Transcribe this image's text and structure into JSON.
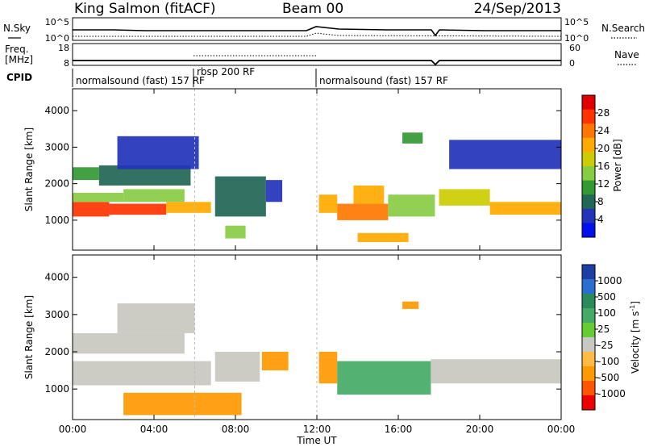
{
  "header": {
    "station": "King Salmon (fitACF)",
    "beam": "Beam 00",
    "date": "24/Sep/2013"
  },
  "noise_panel": {
    "left_label": "N.Sky",
    "right_label": "N.Search",
    "left_ticks": [
      "10^5",
      "10^0"
    ],
    "right_ticks": [
      "10^5",
      "10^0"
    ]
  },
  "freq_panel": {
    "left_label_1": "Freq.",
    "left_label_2": "[MHz]",
    "right_label": "Nave",
    "left_ticks": [
      "18",
      "8"
    ],
    "right_ticks": [
      "60",
      "0"
    ]
  },
  "cpid_panel": {
    "label": "CPID",
    "segments": [
      {
        "name": "normalsound (fast) 157 RF",
        "start": 0.0,
        "end": 6.0
      },
      {
        "name": "rbsp 200 RF",
        "start": 6.0,
        "end": 12.0
      },
      {
        "name": "normalsound (fast) 157 RF",
        "start": 12.0,
        "end": 24.0
      }
    ]
  },
  "xaxis": {
    "label": "Time UT",
    "ticks": [
      "00:00",
      "04:00",
      "08:00",
      "12:00",
      "16:00",
      "20:00",
      "00:00"
    ]
  },
  "power_colorbar": {
    "label": "Power [dB]",
    "ticks": [
      "28",
      "24",
      "20",
      "16",
      "12",
      "8",
      "4"
    ],
    "colors": [
      "#e00000",
      "#ff3300",
      "#ff7700",
      "#ffaa00",
      "#cccc00",
      "#88cc44",
      "#339933",
      "#226655",
      "#2233bb",
      "#0011ee"
    ]
  },
  "velocity_colorbar": {
    "label": "Velocity [m s",
    "label_sup": "-1",
    "label_end": "]",
    "ticks": [
      "1000",
      "500",
      "100",
      "25",
      "-25",
      "-100",
      "-500",
      "-1000"
    ],
    "colors": [
      "#1b3fa5",
      "#2a6fd0",
      "#2a8a5a",
      "#44aa66",
      "#66cc33",
      "#c8c8c0",
      "#ffbb44",
      "#ff9900",
      "#ff5500",
      "#ee0000"
    ]
  },
  "chart_data": {
    "type": "heatmap",
    "title": "King Salmon (fitACF)",
    "xlabel": "Time UT",
    "ylabel": "Slant Range [km]",
    "xlim": [
      0,
      24
    ],
    "ylim": [
      180,
      4600
    ],
    "yticks": [
      1000,
      2000,
      3000,
      4000
    ],
    "panels": [
      {
        "name": "power",
        "colorbar_label": "Power [dB]",
        "zlim": [
          0,
          30
        ],
        "regions": [
          {
            "t0": 0.0,
            "t1": 1.8,
            "r0": 1100,
            "r1": 1500,
            "v": 26
          },
          {
            "t0": 1.8,
            "t1": 4.6,
            "r0": 1150,
            "r1": 1450,
            "v": 24
          },
          {
            "t0": 4.6,
            "t1": 6.8,
            "r0": 1200,
            "r1": 1500,
            "v": 20
          },
          {
            "t0": 0.0,
            "t1": 2.5,
            "r0": 1500,
            "r1": 1750,
            "v": 14
          },
          {
            "t0": 2.5,
            "t1": 5.5,
            "r0": 1500,
            "r1": 1850,
            "v": 12
          },
          {
            "t0": 0.0,
            "t1": 1.3,
            "r0": 2100,
            "r1": 2450,
            "v": 9
          },
          {
            "t0": 1.3,
            "t1": 5.8,
            "r0": 1950,
            "r1": 2500,
            "v": 8
          },
          {
            "t0": 2.2,
            "t1": 6.2,
            "r0": 2400,
            "r1": 3300,
            "v": 5
          },
          {
            "t0": 7.0,
            "t1": 9.5,
            "r0": 1100,
            "r1": 2200,
            "v": 6
          },
          {
            "t0": 7.5,
            "t1": 8.5,
            "r0": 500,
            "r1": 850,
            "v": 14
          },
          {
            "t0": 9.5,
            "t1": 10.3,
            "r0": 1500,
            "r1": 2100,
            "v": 5
          },
          {
            "t0": 12.1,
            "t1": 13.0,
            "r0": 1200,
            "r1": 1700,
            "v": 20
          },
          {
            "t0": 13.0,
            "t1": 15.5,
            "r0": 1000,
            "r1": 1450,
            "v": 22
          },
          {
            "t0": 13.8,
            "t1": 15.3,
            "r0": 1450,
            "r1": 1950,
            "v": 20
          },
          {
            "t0": 15.5,
            "t1": 17.8,
            "r0": 1100,
            "r1": 1700,
            "v": 12
          },
          {
            "t0": 14.0,
            "t1": 16.5,
            "r0": 400,
            "r1": 650,
            "v": 18
          },
          {
            "t0": 16.2,
            "t1": 17.2,
            "r0": 3100,
            "r1": 3400,
            "v": 9
          },
          {
            "t0": 18.0,
            "t1": 20.5,
            "r0": 1400,
            "r1": 1850,
            "v": 16
          },
          {
            "t0": 20.5,
            "t1": 24.0,
            "r0": 1150,
            "r1": 1500,
            "v": 20
          },
          {
            "t0": 18.5,
            "t1": 24.0,
            "r0": 2400,
            "r1": 3200,
            "v": 5
          }
        ]
      },
      {
        "name": "velocity",
        "colorbar_label": "Velocity [m s-1]",
        "zlim": [
          -1000,
          1000
        ],
        "regions": [
          {
            "t0": 0.0,
            "t1": 6.8,
            "r0": 1100,
            "r1": 1750,
            "v": 0
          },
          {
            "t0": 0.0,
            "t1": 5.5,
            "r0": 1950,
            "r1": 2500,
            "v": 0
          },
          {
            "t0": 2.2,
            "t1": 6.0,
            "r0": 2500,
            "r1": 3300,
            "v": 0
          },
          {
            "t0": 7.0,
            "t1": 9.2,
            "r0": 1200,
            "r1": 2000,
            "v": 0
          },
          {
            "t0": 2.5,
            "t1": 8.3,
            "r0": 300,
            "r1": 900,
            "v": -150
          },
          {
            "t0": 9.3,
            "t1": 10.6,
            "r0": 1500,
            "r1": 2000,
            "v": -150
          },
          {
            "t0": 12.1,
            "t1": 13.0,
            "r0": 1150,
            "r1": 2000,
            "v": -150
          },
          {
            "t0": 13.0,
            "t1": 17.6,
            "r0": 850,
            "r1": 1750,
            "v": 60
          },
          {
            "t0": 16.2,
            "t1": 17.0,
            "r0": 3150,
            "r1": 3350,
            "v": -150
          },
          {
            "t0": 17.6,
            "t1": 24.0,
            "r0": 1150,
            "r1": 1800,
            "v": 0
          }
        ]
      }
    ]
  }
}
